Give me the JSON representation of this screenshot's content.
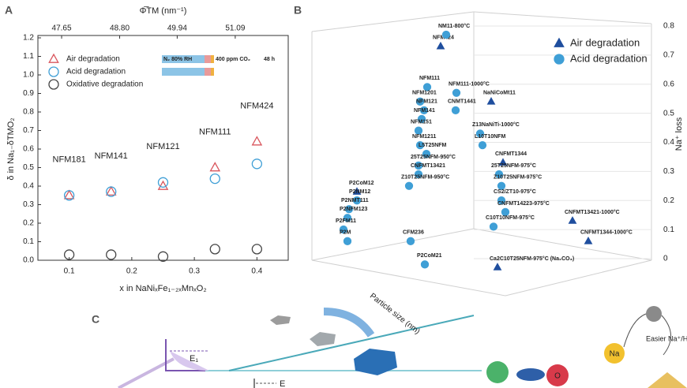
{
  "chart_data": [
    {
      "type": "scatter",
      "panel_label": "A",
      "x_label": "x in NaNiₓFe₁₋₂ₓMnₓO₂",
      "y_label": "δ in Na₁₋δTMO₂",
      "x2_label": "Φ̅TM (nm⁻¹)",
      "x": [
        0.1,
        0.167,
        0.25,
        0.333,
        0.4
      ],
      "annotations": [
        "NFM181",
        "NFM141",
        "NFM121",
        "NFM111",
        "NFM424"
      ],
      "series": [
        {
          "name": "Air degradation",
          "color": "#d9575e",
          "marker": "triangle",
          "values": [
            0.35,
            0.37,
            0.4,
            0.5,
            0.64
          ]
        },
        {
          "name": "Acid degradation",
          "color": "#3f9fd6",
          "marker": "circle",
          "values": [
            0.35,
            0.37,
            0.42,
            0.44,
            0.52
          ]
        },
        {
          "name": "Oxidative degradation",
          "color": "#444444",
          "marker": "circle",
          "values": [
            0.03,
            0.03,
            0.02,
            0.06,
            0.06
          ]
        }
      ],
      "legend_conditions": [
        "N₂ 80% RH",
        "400 ppm CO₂",
        "48 h"
      ],
      "xlim": [
        0.05,
        0.45
      ],
      "xticks": [
        0.1,
        0.2,
        0.3,
        0.4
      ],
      "x2lim": [
        47.18,
        52.14
      ],
      "x2ticks": [
        47.65,
        {
          "value": 48.8,
          "label": "48.80"
        },
        49.94,
        51.09
      ],
      "ylim": [
        0,
        1.2
      ],
      "yticks": [
        {
          "value": 0,
          "label": "0.0"
        },
        0.1,
        0.2,
        0.3,
        0.4,
        0.5,
        0.6,
        0.7,
        0.8,
        0.9,
        {
          "value": 1,
          "label": "1.0"
        },
        1.1,
        1.2
      ],
      "legend": "upper left"
    },
    {
      "type": "scatter3d",
      "panel_label": "B",
      "z_label": "Na⁺ loss",
      "x_label": "Particle size (nm)",
      "zlim": [
        0,
        0.8
      ],
      "zticks": [
        0,
        0.1,
        0.2,
        0.3,
        0.4,
        0.5,
        0.6,
        0.7,
        0.8
      ],
      "legend": "upper right",
      "series": [
        {
          "name": "Air degradation",
          "color": "#1f4e9e",
          "marker": "triangle",
          "labels": [
            "NFM424",
            "NaNiCoMt11",
            "CNFMT1344",
            "P2CoM12",
            "CNFMT13421-1000°C",
            "CNFMT1344-1000°C",
            "Ca2C10T25NFM-975°C (Na₂CO₃)"
          ],
          "label_colors": [
            "#111111",
            "#7b2e9a",
            "#1aa38a",
            "#e08a1e",
            "#2fae5a",
            "#2fae5a",
            "#1e6b2a"
          ],
          "values": [
            0.76,
            0.57,
            0.36,
            0.26,
            0.16,
            0.09,
            0
          ]
        },
        {
          "name": "Acid degradation",
          "color": "#3f9fd6",
          "marker": "circle",
          "labels": [
            "NM11-800°C",
            "NFM111",
            "NFM111-1000°C",
            "NFM1201",
            "NFM121",
            "CNMT1441",
            "NFM141",
            "NFM151",
            "Z13NaNiTi-1000°C",
            "NFM1211",
            "L5T25NFM",
            "L10T10NFM",
            "25T25NFM-950°C",
            "CNFMT13421",
            "25T25NFM-975°C",
            "Z10T25NFM-950°C",
            "Z10T25NFM-975°C",
            "P2NM12",
            "CS2/ZT10-975°C",
            "P2NMT111",
            "CNFMT14223-975°C",
            "P2NFM123",
            "P2FM11",
            "C10T10NFM-975°C",
            "CFM236",
            "P2M",
            "P2CoM21"
          ],
          "label_colors": [
            "#7b2e9a",
            "#1b2f6e",
            "#2d6fc0",
            "#e08a1e",
            "#5aaedc",
            "#111111",
            "#5aaedc",
            "#5aaedc",
            "#a84fc0",
            "#e0701e",
            "#333333",
            "#a84fc0",
            "#1aa38a",
            "#2a6b2a",
            "#2fbf9a",
            "#c0392b",
            "#e07090",
            "#c0392b",
            "#888888",
            "#c0392b",
            "#e04040",
            "#c0392b",
            "#e07090",
            "#e0a020",
            "#111111",
            "#c0392b",
            "#888888"
          ],
          "values": [
            0.8,
            0.62,
            0.6,
            0.57,
            0.54,
            0.54,
            0.51,
            0.47,
            0.46,
            0.42,
            0.39,
            0.42,
            0.35,
            0.32,
            0.32,
            0.28,
            0.28,
            0.23,
            0.23,
            0.2,
            0.19,
            0.17,
            0.13,
            0.14,
            0.09,
            0.09,
            0.01
          ]
        }
      ]
    }
  ],
  "panel_c": {
    "label": "C",
    "energy": "E₁",
    "energy2": "E",
    "exchange": "Easier Na⁺/H⁺ exchange",
    "na": "Na",
    "o": "O"
  }
}
